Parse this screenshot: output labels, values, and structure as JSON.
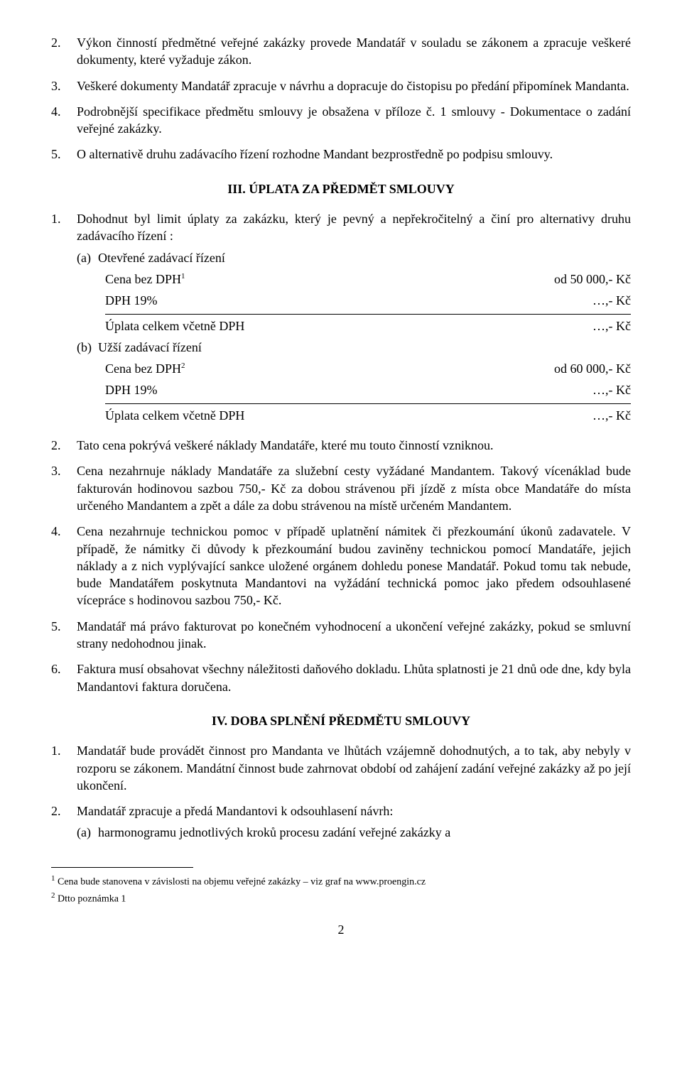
{
  "sec2": {
    "i2": {
      "n": "2.",
      "t": "Výkon činností předmětné veřejné zakázky provede Mandatář v souladu se zákonem a zpracuje veškeré dokumenty, které vyžaduje zákon."
    },
    "i3": {
      "n": "3.",
      "t": "Veškeré dokumenty Mandatář zpracuje v návrhu a dopracuje do čistopisu po předání připomínek Mandanta."
    },
    "i4": {
      "n": "4.",
      "t": "Podrobnější specifikace předmětu smlouvy je obsažena v příloze č. 1 smlouvy - Dokumentace o zadání veřejné zakázky."
    },
    "i5": {
      "n": "5.",
      "t": "O alternativě druhu zadávacího řízení rozhodne Mandant bezprostředně po podpisu smlouvy."
    }
  },
  "h3": "III.   ÚPLATA ZA PŘEDMĚT SMLOUVY",
  "sec3": {
    "i1": {
      "n": "1.",
      "t": "Dohodnut byl limit úplaty za zakázku, který je pevný a nepřekročitelný a činí pro alternativy druhu zadávacího řízení :"
    },
    "a": {
      "lbl": "(a)",
      "t": "Otevřené zadávací řízení"
    },
    "a_rows": {
      "r1": {
        "l": "Cena bez DPH",
        "sup": "1",
        "v": "od 50 000,- Kč"
      },
      "r2": {
        "l": "DPH 19%",
        "v": "…,- Kč"
      },
      "r3": {
        "l": "Úplata celkem včetně DPH",
        "v": "…,- Kč"
      }
    },
    "b": {
      "lbl": "(b)",
      "t": "Užší zadávací řízení"
    },
    "b_rows": {
      "r1": {
        "l": "Cena bez DPH",
        "sup": "2",
        "v": "od 60 000,- Kč"
      },
      "r2": {
        "l": "DPH 19%",
        "v": "…,- Kč"
      },
      "r3": {
        "l": "Úplata celkem včetně DPH",
        "v": "…,- Kč"
      }
    },
    "i2": {
      "n": "2.",
      "t": "Tato cena pokrývá veškeré náklady Mandatáře, které mu touto činností vzniknou."
    },
    "i3": {
      "n": "3.",
      "t": "Cena nezahrnuje náklady Mandatáře za služební cesty vyžádané Mandantem. Takový vícenáklad bude fakturován hodinovou sazbou 750,- Kč za dobou strávenou při jízdě z místa obce Mandatáře do místa určeného Mandantem a zpět a dále za dobu strávenou na místě určeném Mandantem."
    },
    "i4": {
      "n": "4.",
      "t": "Cena nezahrnuje technickou pomoc v případě uplatnění námitek či přezkoumání úkonů zadavatele. V případě, že námitky či důvody k přezkoumání budou zaviněny technickou pomocí Mandatáře, jejich náklady a z nich vyplývající sankce uložené orgánem dohledu ponese Mandatář. Pokud tomu tak nebude, bude Mandatářem poskytnuta Mandantovi na vyžádání technická pomoc jako předem odsouhlasené vícepráce s hodinovou sazbou 750,- Kč."
    },
    "i5": {
      "n": "5.",
      "t": "Mandatář má právo fakturovat po konečném vyhodnocení a ukončení veřejné zakázky, pokud se smluvní strany nedohodnou jinak."
    },
    "i6": {
      "n": "6.",
      "t": "Faktura musí obsahovat všechny náležitosti daňového dokladu. Lhůta splatnosti je 21 dnů ode dne, kdy byla Mandantovi faktura doručena."
    }
  },
  "h4": "IV.   DOBA SPLNĚNÍ PŘEDMĚTU SMLOUVY",
  "sec4": {
    "i1": {
      "n": "1.",
      "t": "Mandatář bude provádět činnost pro Mandanta ve lhůtách vzájemně dohodnutých, a to tak, aby nebyly v rozporu se zákonem. Mandátní činnost bude zahrnovat období od zahájení zadání veřejné zakázky až po její ukončení."
    },
    "i2": {
      "n": "2.",
      "t": "Mandatář zpracuje a předá Mandantovi k odsouhlasení návrh:"
    },
    "a": {
      "lbl": "(a)",
      "t": "harmonogramu jednotlivých kroků procesu zadání veřejné zakázky a"
    }
  },
  "footnotes": {
    "f1": {
      "sup": "1",
      "t": " Cena bude stanovena v závislosti na objemu veřejné zakázky – viz graf na www.proengin.cz"
    },
    "f2": {
      "sup": "2",
      "t": " Dtto poznámka 1"
    }
  },
  "pagenum": "2"
}
